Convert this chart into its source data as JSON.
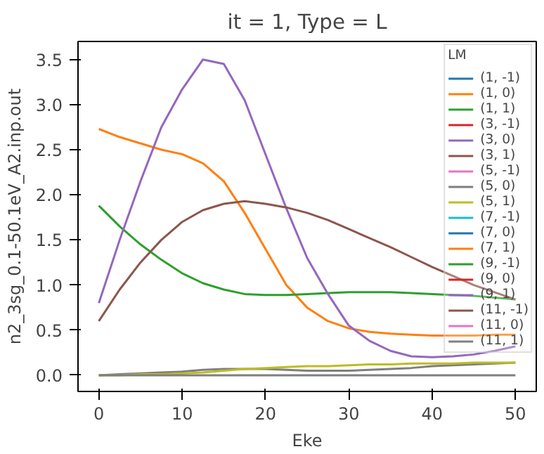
{
  "chart_data": {
    "type": "line",
    "title": "it = 1, Type = L",
    "xlabel": "Eke",
    "ylabel": "n2_3sg_0.1-50.1eV_A2.inp.out",
    "legend_title": "LM",
    "legend": "top right",
    "grid": false,
    "x": [
      0,
      2.5,
      5,
      7.5,
      10,
      12.5,
      15,
      17.5,
      20,
      22.5,
      25,
      27.5,
      30,
      32.5,
      35,
      37.5,
      40,
      42.5,
      45,
      47.5,
      50
    ],
    "xlim": [
      -2.5,
      52.5
    ],
    "xticks": [
      0,
      10,
      20,
      30,
      40,
      50
    ],
    "ylim": [
      -0.18,
      3.7
    ],
    "yticks": [
      {
        "value": 0,
        "label": "0.0"
      },
      {
        "value": 0.5,
        "label": "0.5"
      },
      {
        "value": 1,
        "label": "1.0"
      },
      {
        "value": 1.5,
        "label": "1.5"
      },
      {
        "value": 2,
        "label": "2.0"
      },
      {
        "value": 2.5,
        "label": "2.5"
      },
      {
        "value": 3,
        "label": "3.0"
      },
      {
        "value": 3.5,
        "label": "3.5"
      }
    ],
    "series": [
      {
        "name": "(1, -1)",
        "color": "#1f77b4",
        "values": [
          null,
          null,
          null,
          null,
          null,
          null,
          null,
          null,
          null,
          null,
          null,
          null,
          null,
          null,
          null,
          null,
          null,
          null,
          null,
          null,
          null
        ]
      },
      {
        "name": "(1, 0)",
        "color": "#ff7f0e",
        "values": [
          2.73,
          2.64,
          2.57,
          2.5,
          2.45,
          2.35,
          2.15,
          1.8,
          1.4,
          1.0,
          0.75,
          0.6,
          0.52,
          0.48,
          0.46,
          0.45,
          0.44,
          0.44,
          0.44,
          0.45,
          0.45
        ]
      },
      {
        "name": "(1, 1)",
        "color": "#2ca02c",
        "values": [
          1.88,
          1.65,
          1.45,
          1.28,
          1.13,
          1.02,
          0.95,
          0.9,
          0.89,
          0.89,
          0.9,
          0.91,
          0.92,
          0.92,
          0.92,
          0.91,
          0.9,
          0.89,
          0.88,
          0.86,
          0.84
        ]
      },
      {
        "name": "(3, -1)",
        "color": "#d62728",
        "values": [
          null,
          null,
          null,
          null,
          null,
          null,
          null,
          null,
          null,
          null,
          null,
          null,
          null,
          null,
          null,
          null,
          null,
          null,
          null,
          null,
          null
        ]
      },
      {
        "name": "(3, 0)",
        "color": "#9467bd",
        "values": [
          0.8,
          1.5,
          2.15,
          2.75,
          3.17,
          3.5,
          3.45,
          3.05,
          2.45,
          1.85,
          1.3,
          0.9,
          0.55,
          0.38,
          0.27,
          0.21,
          0.2,
          0.21,
          0.23,
          0.27,
          0.32
        ]
      },
      {
        "name": "(3, 1)",
        "color": "#8c564b",
        "values": [
          0.6,
          0.95,
          1.25,
          1.5,
          1.7,
          1.83,
          1.9,
          1.93,
          1.9,
          1.86,
          1.8,
          1.72,
          1.62,
          1.52,
          1.42,
          1.31,
          1.2,
          1.1,
          1.0,
          0.92,
          0.84
        ]
      },
      {
        "name": "(5, -1)",
        "color": "#e377c2",
        "values": [
          null,
          null,
          null,
          null,
          null,
          null,
          null,
          null,
          null,
          null,
          null,
          null,
          null,
          null,
          null,
          null,
          null,
          null,
          null,
          null,
          null
        ]
      },
      {
        "name": "(5, 0)",
        "color": "#7f7f7f",
        "values": [
          0,
          0.01,
          0.02,
          0.03,
          0.04,
          0.06,
          0.07,
          0.07,
          0.07,
          0.06,
          0.05,
          0.05,
          0.05,
          0.06,
          0.07,
          0.08,
          0.1,
          0.11,
          0.12,
          0.13,
          0.14
        ]
      },
      {
        "name": "(5, 1)",
        "color": "#bcbd22",
        "values": [
          0,
          0,
          0.01,
          0.01,
          0.02,
          0.03,
          0.05,
          0.07,
          0.08,
          0.09,
          0.1,
          0.1,
          0.11,
          0.12,
          0.12,
          0.13,
          0.13,
          0.13,
          0.14,
          0.14,
          0.14
        ]
      },
      {
        "name": "(7, -1)",
        "color": "#17becf",
        "values": [
          null,
          null,
          null,
          null,
          null,
          null,
          null,
          null,
          null,
          null,
          null,
          null,
          null,
          null,
          null,
          null,
          null,
          null,
          null,
          null,
          null
        ]
      },
      {
        "name": "(7, 0)",
        "color": "#1f77b4",
        "values": [
          null,
          null,
          null,
          null,
          null,
          null,
          null,
          null,
          null,
          null,
          null,
          null,
          null,
          null,
          null,
          null,
          null,
          null,
          null,
          null,
          null
        ]
      },
      {
        "name": "(7, 1)",
        "color": "#ff7f0e",
        "values": [
          null,
          null,
          null,
          null,
          null,
          null,
          null,
          null,
          null,
          null,
          null,
          null,
          null,
          null,
          null,
          null,
          null,
          null,
          null,
          null,
          null
        ]
      },
      {
        "name": "(9, -1)",
        "color": "#2ca02c",
        "values": [
          null,
          null,
          null,
          null,
          null,
          null,
          null,
          null,
          null,
          null,
          null,
          null,
          null,
          null,
          null,
          null,
          null,
          null,
          null,
          null,
          null
        ]
      },
      {
        "name": "(9, 0)",
        "color": "#d62728",
        "values": [
          null,
          null,
          null,
          null,
          null,
          null,
          null,
          null,
          null,
          null,
          null,
          null,
          null,
          null,
          null,
          null,
          null,
          null,
          null,
          null,
          null
        ]
      },
      {
        "name": "(9, 1)",
        "color": "#9467bd",
        "values": [
          null,
          null,
          null,
          null,
          null,
          null,
          null,
          null,
          null,
          null,
          null,
          null,
          null,
          null,
          null,
          null,
          null,
          null,
          null,
          null,
          null
        ]
      },
      {
        "name": "(11, -1)",
        "color": "#8c564b",
        "values": [
          null,
          null,
          null,
          null,
          null,
          null,
          null,
          null,
          null,
          null,
          null,
          null,
          null,
          null,
          null,
          null,
          null,
          null,
          null,
          null,
          null
        ]
      },
      {
        "name": "(11, 0)",
        "color": "#e377c2",
        "values": [
          null,
          null,
          null,
          null,
          null,
          null,
          null,
          null,
          null,
          null,
          null,
          null,
          null,
          null,
          null,
          null,
          null,
          null,
          null,
          null,
          null
        ]
      },
      {
        "name": "(11, 1)",
        "color": "#7f7f7f",
        "values": [
          0,
          0,
          0,
          0,
          0,
          0,
          0,
          0,
          0,
          0,
          0,
          0,
          0,
          0,
          0,
          0,
          0,
          0,
          0,
          0,
          0
        ]
      }
    ]
  }
}
